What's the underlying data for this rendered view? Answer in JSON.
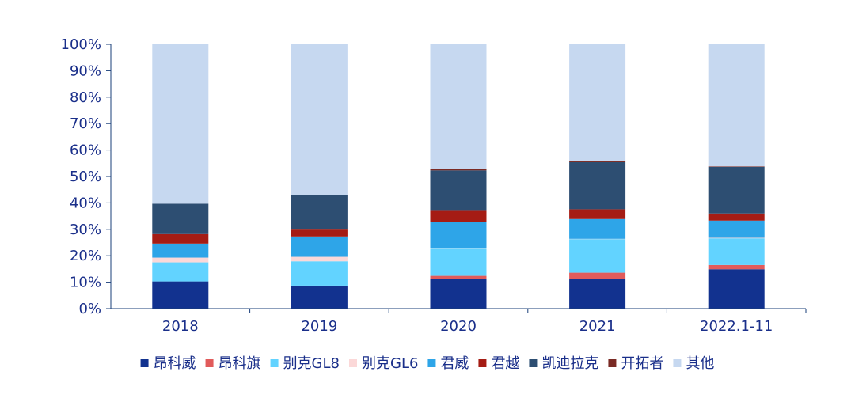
{
  "chart_data": {
    "type": "bar",
    "stacked": true,
    "title": "",
    "xlabel": "",
    "ylabel": "",
    "ylim": [
      0,
      100
    ],
    "yticks": [
      "0%",
      "10%",
      "20%",
      "30%",
      "40%",
      "50%",
      "60%",
      "70%",
      "80%",
      "90%",
      "100%"
    ],
    "categories": [
      "2018",
      "2019",
      "2020",
      "2021",
      "2022.1-11"
    ],
    "legend_position": "bottom",
    "series": [
      {
        "name": "昂科威",
        "color": "#12328f",
        "values": [
          10.3,
          8.5,
          11.2,
          11.2,
          14.9
        ]
      },
      {
        "name": "昂科旗",
        "color": "#e15b5b",
        "values": [
          0.0,
          0.2,
          1.2,
          2.4,
          1.6
        ]
      },
      {
        "name": "别克GL8",
        "color": "#62d3ff",
        "values": [
          7.2,
          9.2,
          10.3,
          12.7,
          10.1
        ]
      },
      {
        "name": "别克GL6",
        "color": "#fbd8d8",
        "values": [
          1.8,
          1.7,
          0.2,
          0.1,
          0.2
        ]
      },
      {
        "name": "君威",
        "color": "#2ea5e8",
        "values": [
          5.3,
          7.7,
          10.0,
          7.5,
          6.5
        ]
      },
      {
        "name": "君越",
        "color": "#a51c14",
        "values": [
          3.6,
          2.6,
          4.1,
          3.7,
          2.7
        ]
      },
      {
        "name": "凯迪拉克",
        "color": "#2d4e72",
        "values": [
          11.5,
          13.2,
          15.3,
          17.8,
          17.6
        ]
      },
      {
        "name": "开拓者",
        "color": "#7a2a24",
        "values": [
          0.0,
          0.0,
          0.5,
          0.4,
          0.2
        ]
      },
      {
        "name": "其他",
        "color": "#c6d8f0",
        "values": [
          60.3,
          56.9,
          47.2,
          44.2,
          46.2
        ]
      }
    ]
  }
}
